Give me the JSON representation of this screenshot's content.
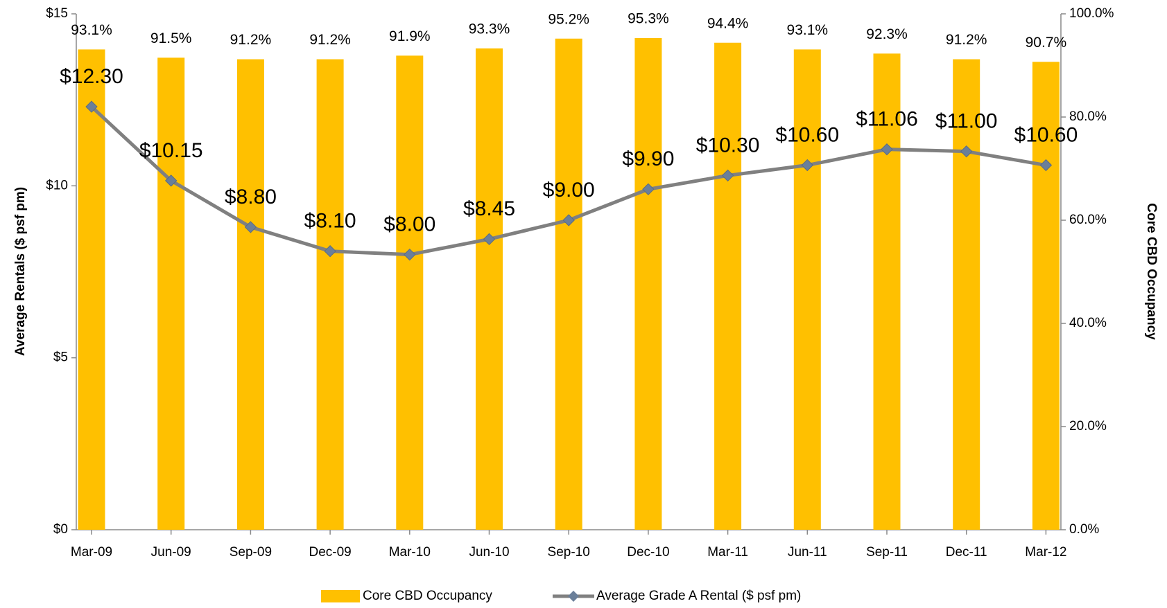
{
  "chart_data": {
    "type": "bar",
    "categories": [
      "Mar-09",
      "Jun-09",
      "Sep-09",
      "Dec-09",
      "Mar-10",
      "Jun-10",
      "Sep-10",
      "Dec-10",
      "Mar-11",
      "Jun-11",
      "Sep-11",
      "Dec-11",
      "Mar-12"
    ],
    "series": [
      {
        "name": "Core CBD Occupancy",
        "type": "bar",
        "axis": "y2",
        "color": "#FFC000",
        "values": [
          93.1,
          91.5,
          91.2,
          91.2,
          91.9,
          93.3,
          95.2,
          95.3,
          94.4,
          93.1,
          92.3,
          91.2,
          90.7
        ],
        "value_labels": [
          "93.1%",
          "91.5%",
          "91.2%",
          "91.2%",
          "91.9%",
          "93.3%",
          "95.2%",
          "95.3%",
          "94.4%",
          "93.1%",
          "92.3%",
          "91.2%",
          "90.7%"
        ]
      },
      {
        "name": "Average Grade A Rental ($ psf pm)",
        "type": "line",
        "color": "#808080",
        "marker_color": "#6B7F99",
        "values": [
          12.3,
          10.15,
          8.8,
          8.1,
          8.0,
          8.45,
          9.0,
          9.9,
          10.3,
          10.6,
          11.06,
          11.0,
          10.6
        ],
        "value_labels": [
          "$12.30",
          "$10.15",
          "$8.80",
          "$8.10",
          "$8.00",
          "$8.45",
          "$9.00",
          "$9.90",
          "$10.30",
          "$10.60",
          "$11.06",
          "$11.00",
          "$10.60"
        ]
      }
    ],
    "y_label": "Average Rentals ($ psf pm)",
    "y2_label": "Core CBD Occupancy",
    "ylim": [
      0,
      15
    ],
    "yticks": [
      {
        "value": 0,
        "label": "$0"
      },
      {
        "value": 5,
        "label": "$5"
      },
      {
        "value": 10,
        "label": "$10"
      },
      {
        "value": 15,
        "label": "$15"
      }
    ],
    "y2lim": [
      0,
      100
    ],
    "y2ticks": [
      {
        "value": 0,
        "label": "0.0%"
      },
      {
        "value": 20,
        "label": "20.0%"
      },
      {
        "value": 40,
        "label": "40.0%"
      },
      {
        "value": 60,
        "label": "60.0%"
      },
      {
        "value": 80,
        "label": "80.0%"
      },
      {
        "value": 100,
        "label": "100.0%"
      }
    ],
    "legend": "bottom"
  }
}
